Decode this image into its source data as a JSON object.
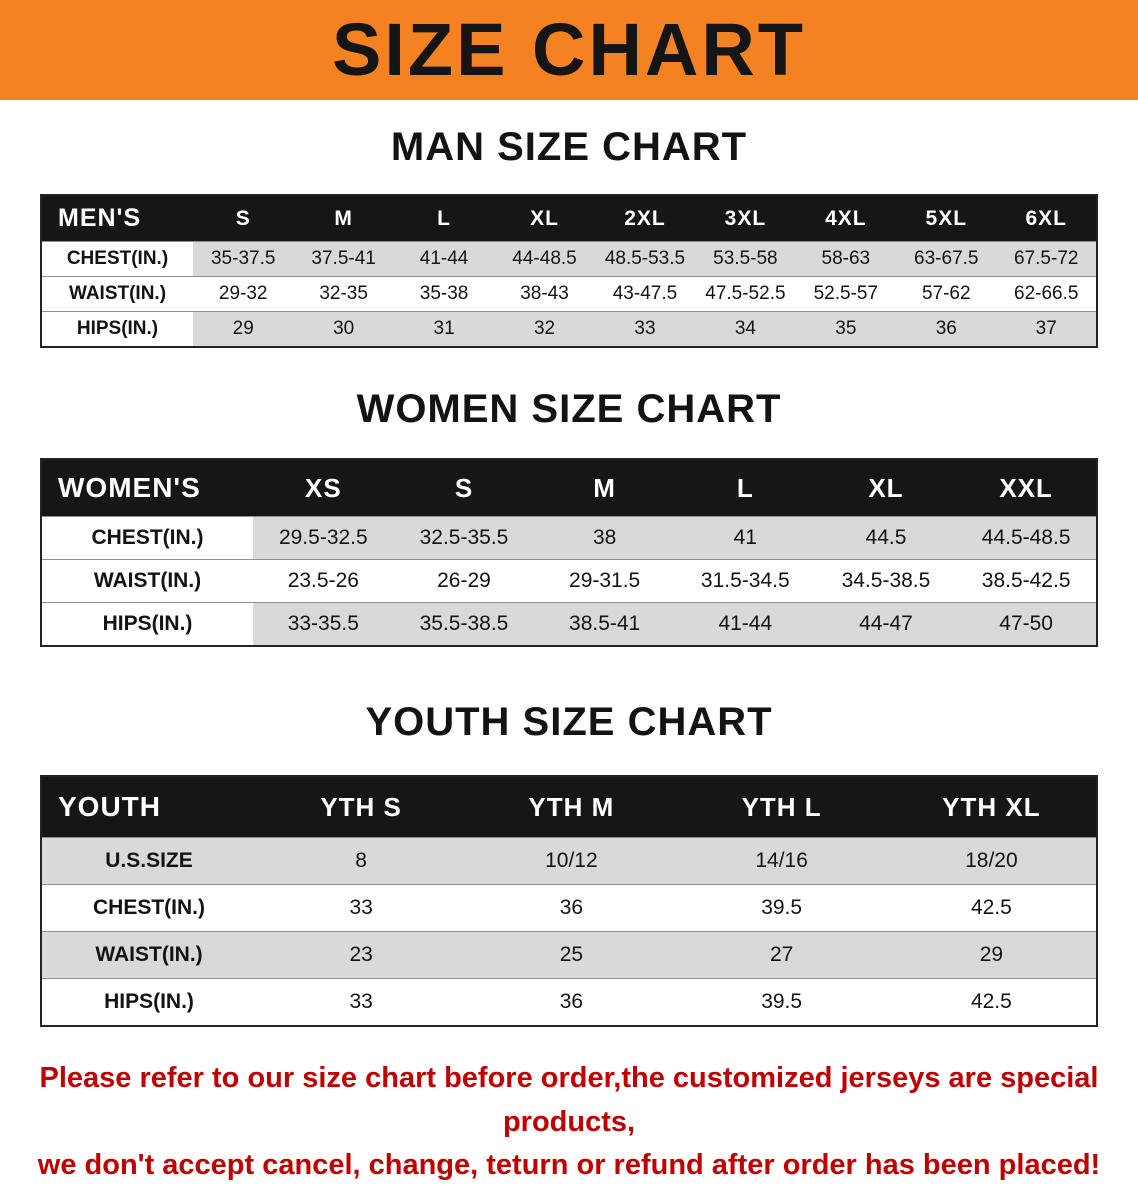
{
  "banner": {
    "title": "SIZE CHART",
    "bg_color": "#F58220",
    "text_color": "#151515"
  },
  "sections": [
    {
      "id": "men",
      "heading": "MAN SIZE CHART",
      "table": {
        "title": "MEN'S",
        "columns": [
          "S",
          "M",
          "L",
          "XL",
          "2XL",
          "3XL",
          "4XL",
          "5XL",
          "6XL"
        ],
        "rows": [
          {
            "label": "CHEST(IN.)",
            "values": [
              "35-37.5",
              "37.5-41",
              "41-44",
              "44-48.5",
              "48.5-53.5",
              "53.5-58",
              "58-63",
              "63-67.5",
              "67.5-72"
            ]
          },
          {
            "label": "WAIST(IN.)",
            "values": [
              "29-32",
              "32-35",
              "35-38",
              "38-43",
              "43-47.5",
              "47.5-52.5",
              "52.5-57",
              "57-62",
              "62-66.5"
            ]
          },
          {
            "label": "HIPS(IN.)",
            "values": [
              "29",
              "30",
              "31",
              "32",
              "33",
              "34",
              "35",
              "36",
              "37"
            ]
          }
        ]
      }
    },
    {
      "id": "women",
      "heading": "WOMEN SIZE CHART",
      "table": {
        "title": "WOMEN'S",
        "columns": [
          "XS",
          "S",
          "M",
          "L",
          "XL",
          "XXL"
        ],
        "rows": [
          {
            "label": "CHEST(IN.)",
            "values": [
              "29.5-32.5",
              "32.5-35.5",
              "38",
              "41",
              "44.5",
              "44.5-48.5"
            ]
          },
          {
            "label": "WAIST(IN.)",
            "values": [
              "23.5-26",
              "26-29",
              "29-31.5",
              "31.5-34.5",
              "34.5-38.5",
              "38.5-42.5"
            ]
          },
          {
            "label": "HIPS(IN.)",
            "values": [
              "33-35.5",
              "35.5-38.5",
              "38.5-41",
              "41-44",
              "44-47",
              "47-50"
            ]
          }
        ]
      }
    },
    {
      "id": "youth",
      "heading": "YOUTH SIZE CHART",
      "table": {
        "title": "YOUTH",
        "columns": [
          "YTH S",
          "YTH M",
          "YTH L",
          "YTH XL"
        ],
        "rows": [
          {
            "label": "U.S.SIZE",
            "values": [
              "8",
              "10/12",
              "14/16",
              "18/20"
            ]
          },
          {
            "label": "CHEST(IN.)",
            "values": [
              "33",
              "36",
              "39.5",
              "42.5"
            ]
          },
          {
            "label": "WAIST(IN.)",
            "values": [
              "23",
              "25",
              "27",
              "29"
            ]
          },
          {
            "label": "HIPS(IN.)",
            "values": [
              "33",
              "36",
              "39.5",
              "42.5"
            ]
          }
        ]
      }
    }
  ],
  "disclaimer": {
    "color": "#C00000",
    "lines": [
      "Please refer to our size chart before order,the customized jerseys are special products,",
      "we don't accept cancel, change, teturn or refund after order has been placed!"
    ]
  }
}
